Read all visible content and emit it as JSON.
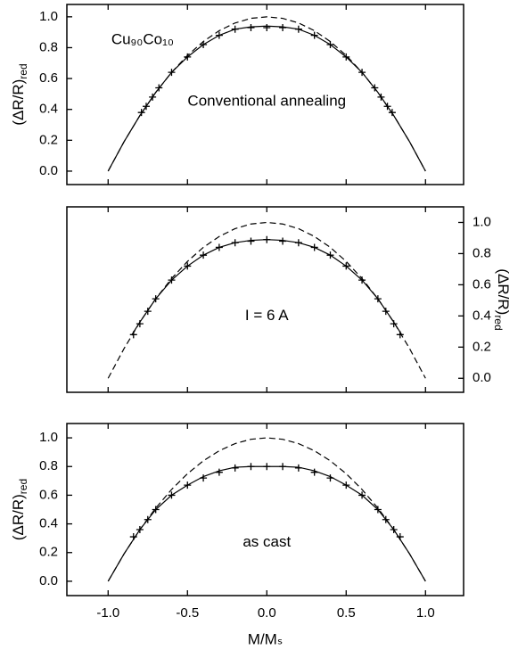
{
  "chart_data": [
    {
      "type": "line",
      "xlim": [
        -1.26,
        1.24
      ],
      "ylim": [
        -0.087,
        1.08
      ],
      "y_axis_side": "left",
      "ylabel": "(ΔR/R)",
      "ylabel_sub": "red",
      "yticks": [
        {
          "value": 0,
          "label": "0.0"
        },
        0.2,
        0.4,
        0.6,
        0.8,
        {
          "value": 1,
          "label": "1.0"
        }
      ],
      "annotations": [
        "Cu₉₀Co₁₀",
        "Conventional annealing"
      ],
      "series": [
        {
          "style": "dashed",
          "color": "#000000",
          "x": [
            -1,
            -0.9,
            -0.8,
            -0.7,
            -0.6,
            -0.5,
            -0.4,
            -0.3,
            -0.2,
            -0.1,
            0,
            0.1,
            0.2,
            0.3,
            0.4,
            0.5,
            0.6,
            0.7,
            0.8,
            0.9,
            1
          ],
          "values": [
            0,
            0.19,
            0.36,
            0.51,
            0.64,
            0.75,
            0.84,
            0.91,
            0.96,
            0.99,
            1,
            0.99,
            0.96,
            0.91,
            0.84,
            0.75,
            0.64,
            0.51,
            0.36,
            0.19,
            0
          ]
        },
        {
          "style": "solid",
          "color": "#000000",
          "x": [
            -1,
            -0.9,
            -0.8,
            -0.7,
            -0.6,
            -0.5,
            -0.4,
            -0.3,
            -0.2,
            -0.1,
            0,
            0.1,
            0.2,
            0.3,
            0.4,
            0.5,
            0.6,
            0.7,
            0.8,
            0.9,
            1
          ],
          "values": [
            0,
            0.19,
            0.36,
            0.51,
            0.64,
            0.74,
            0.82,
            0.88,
            0.92,
            0.935,
            0.94,
            0.935,
            0.92,
            0.88,
            0.82,
            0.74,
            0.64,
            0.51,
            0.36,
            0.19,
            0
          ]
        },
        {
          "style": "plus",
          "color": "#000000",
          "x": [
            -0.79,
            -0.76,
            -0.72,
            -0.68,
            -0.6,
            -0.5,
            -0.4,
            -0.3,
            -0.2,
            -0.1,
            0,
            0.1,
            0.2,
            0.3,
            0.4,
            0.5,
            0.6,
            0.68,
            0.72,
            0.76,
            0.79
          ],
          "values": [
            0.38,
            0.42,
            0.48,
            0.54,
            0.64,
            0.74,
            0.82,
            0.88,
            0.92,
            0.93,
            0.93,
            0.93,
            0.92,
            0.88,
            0.82,
            0.74,
            0.64,
            0.54,
            0.48,
            0.42,
            0.38
          ]
        }
      ]
    },
    {
      "type": "line",
      "xlim": [
        -1.26,
        1.24
      ],
      "ylim": [
        -0.09,
        1.1
      ],
      "y_axis_side": "right",
      "ylabel": "(ΔR/R)",
      "ylabel_sub": "red",
      "yticks": [
        {
          "value": 0,
          "label": "0.0"
        },
        0.2,
        0.4,
        0.6,
        0.8,
        {
          "value": 1,
          "label": "1.0"
        }
      ],
      "annotations": [
        "I = 6 A"
      ],
      "series": [
        {
          "style": "dashed",
          "color": "#000000",
          "x": [
            -1,
            -0.9,
            -0.8,
            -0.7,
            -0.6,
            -0.5,
            -0.4,
            -0.3,
            -0.2,
            -0.1,
            0,
            0.1,
            0.2,
            0.3,
            0.4,
            0.5,
            0.6,
            0.7,
            0.8,
            0.9,
            1
          ],
          "values": [
            0,
            0.19,
            0.36,
            0.51,
            0.64,
            0.75,
            0.84,
            0.91,
            0.96,
            0.99,
            1,
            0.99,
            0.96,
            0.91,
            0.84,
            0.75,
            0.64,
            0.51,
            0.36,
            0.19,
            0
          ]
        },
        {
          "style": "solid",
          "color": "#000000",
          "x": [
            -0.85,
            -0.8,
            -0.7,
            -0.6,
            -0.5,
            -0.4,
            -0.3,
            -0.2,
            -0.1,
            0,
            0.1,
            0.2,
            0.3,
            0.4,
            0.5,
            0.6,
            0.7,
            0.8,
            0.85
          ],
          "values": [
            0.28,
            0.36,
            0.51,
            0.63,
            0.72,
            0.79,
            0.84,
            0.87,
            0.885,
            0.89,
            0.885,
            0.87,
            0.84,
            0.79,
            0.72,
            0.63,
            0.51,
            0.36,
            0.28
          ]
        },
        {
          "style": "plus",
          "color": "#000000",
          "x": [
            -0.84,
            -0.8,
            -0.75,
            -0.7,
            -0.6,
            -0.5,
            -0.4,
            -0.3,
            -0.2,
            -0.1,
            0,
            0.1,
            0.2,
            0.3,
            0.4,
            0.5,
            0.6,
            0.7,
            0.75,
            0.8,
            0.84
          ],
          "values": [
            0.28,
            0.35,
            0.43,
            0.51,
            0.63,
            0.72,
            0.79,
            0.84,
            0.87,
            0.88,
            0.89,
            0.88,
            0.87,
            0.84,
            0.79,
            0.72,
            0.63,
            0.51,
            0.43,
            0.35,
            0.28
          ]
        }
      ]
    },
    {
      "type": "line",
      "xlim": [
        -1.26,
        1.24
      ],
      "ylim": [
        -0.1,
        1.1
      ],
      "y_axis_side": "left",
      "ylabel": "(ΔR/R)",
      "ylabel_sub": "red",
      "xlabel": "M/Mₛ",
      "xticks": [
        {
          "value": -1,
          "label": "-1.0"
        },
        -0.5,
        {
          "value": 0,
          "label": "0.0"
        },
        0.5,
        {
          "value": 1,
          "label": "1.0"
        }
      ],
      "yticks": [
        {
          "value": 0,
          "label": "0.0"
        },
        0.2,
        0.4,
        0.6,
        0.8,
        {
          "value": 1,
          "label": "1.0"
        }
      ],
      "annotations": [
        "as cast"
      ],
      "series": [
        {
          "style": "dashed",
          "color": "#000000",
          "x": [
            -1,
            -0.9,
            -0.8,
            -0.7,
            -0.6,
            -0.5,
            -0.4,
            -0.3,
            -0.2,
            -0.1,
            0,
            0.1,
            0.2,
            0.3,
            0.4,
            0.5,
            0.6,
            0.7,
            0.8,
            0.9,
            1
          ],
          "values": [
            0,
            0.19,
            0.36,
            0.51,
            0.64,
            0.75,
            0.84,
            0.91,
            0.96,
            0.99,
            1,
            0.99,
            0.96,
            0.91,
            0.84,
            0.75,
            0.64,
            0.51,
            0.36,
            0.19,
            0
          ]
        },
        {
          "style": "solid",
          "color": "#000000",
          "x": [
            -1,
            -0.9,
            -0.8,
            -0.7,
            -0.6,
            -0.5,
            -0.4,
            -0.3,
            -0.2,
            -0.1,
            0,
            0.1,
            0.2,
            0.3,
            0.4,
            0.5,
            0.6,
            0.7,
            0.8,
            0.9,
            1
          ],
          "values": [
            0,
            0.19,
            0.36,
            0.5,
            0.6,
            0.67,
            0.73,
            0.77,
            0.795,
            0.8,
            0.8,
            0.8,
            0.795,
            0.77,
            0.73,
            0.67,
            0.6,
            0.5,
            0.36,
            0.19,
            0
          ]
        },
        {
          "style": "plus",
          "color": "#000000",
          "x": [
            -0.84,
            -0.8,
            -0.75,
            -0.7,
            -0.6,
            -0.5,
            -0.4,
            -0.3,
            -0.2,
            -0.1,
            0,
            0.1,
            0.2,
            0.3,
            0.4,
            0.5,
            0.6,
            0.7,
            0.75,
            0.8,
            0.84
          ],
          "values": [
            0.31,
            0.36,
            0.43,
            0.5,
            0.6,
            0.67,
            0.72,
            0.76,
            0.79,
            0.8,
            0.8,
            0.8,
            0.79,
            0.76,
            0.72,
            0.67,
            0.6,
            0.5,
            0.43,
            0.36,
            0.31
          ]
        }
      ]
    }
  ]
}
